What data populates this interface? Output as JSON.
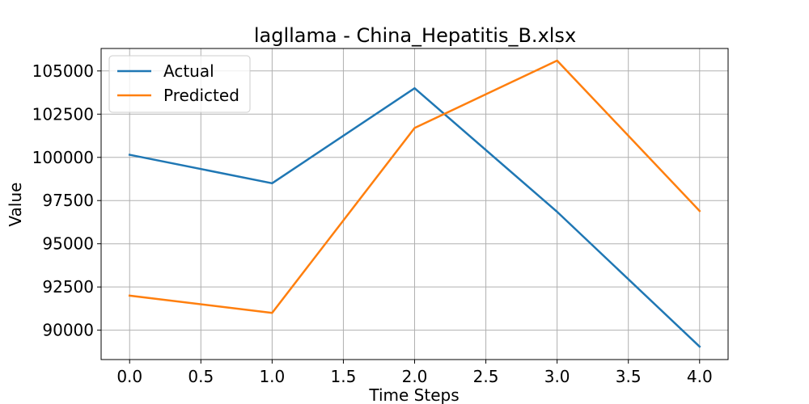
{
  "chart_data": {
    "type": "line",
    "title": "lagllama - China_Hepatitis_B.xlsx",
    "xlabel": "Time Steps",
    "ylabel": "Value",
    "x": [
      0,
      1,
      2,
      3,
      4
    ],
    "xlim": [
      -0.2,
      4.2
    ],
    "ylim": [
      88300,
      106300
    ],
    "xticks": [
      0.0,
      0.5,
      1.0,
      1.5,
      2.0,
      2.5,
      3.0,
      3.5,
      4.0
    ],
    "xtick_labels": [
      "0.0",
      "0.5",
      "1.0",
      "1.5",
      "2.0",
      "2.5",
      "3.0",
      "3.5",
      "4.0"
    ],
    "yticks": [
      90000,
      92500,
      95000,
      97500,
      100000,
      102500,
      105000
    ],
    "ytick_labels": [
      "90000",
      "92500",
      "95000",
      "97500",
      "100000",
      "102500",
      "105000"
    ],
    "grid": true,
    "legend_position": "top-left",
    "series": [
      {
        "name": "Actual",
        "color": "#1f77b4",
        "values": [
          100150,
          98500,
          104000,
          96850,
          89050
        ]
      },
      {
        "name": "Predicted",
        "color": "#ff7f0e",
        "values": [
          92000,
          91000,
          101700,
          105600,
          96900
        ]
      }
    ]
  }
}
